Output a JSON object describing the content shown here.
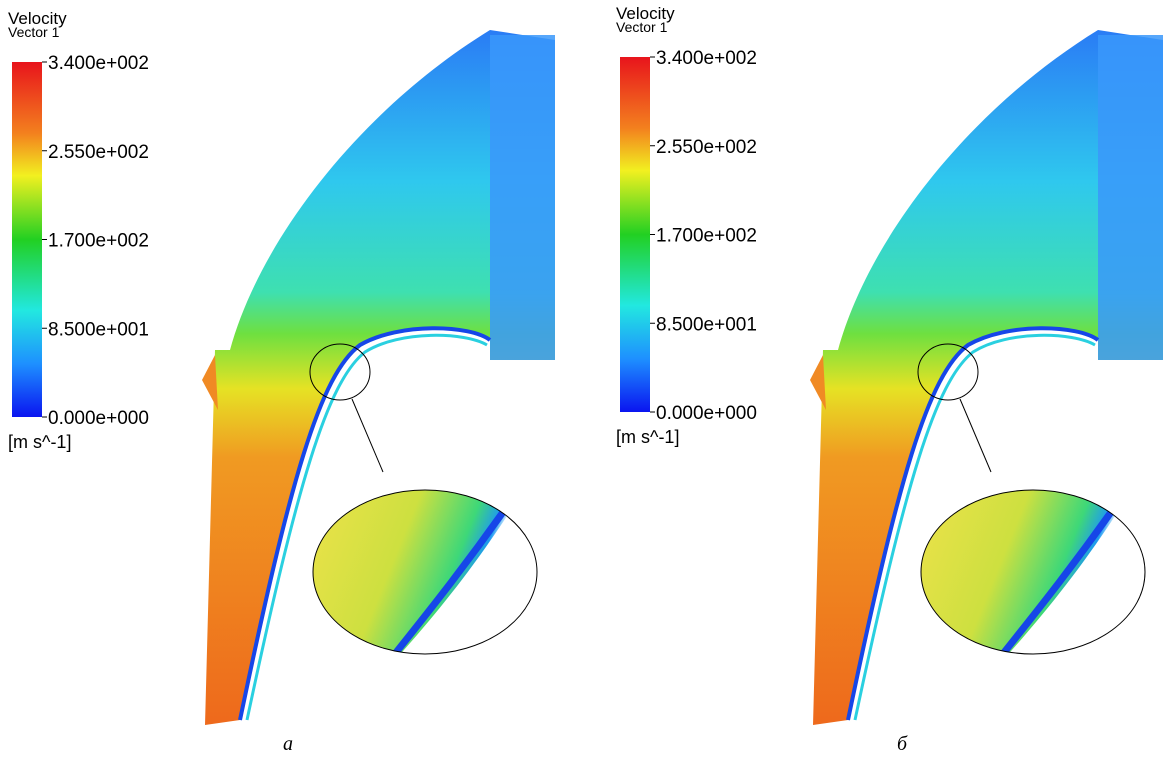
{
  "panels": [
    {
      "title": "Velocity",
      "subtitle": "Vector 1",
      "legend": {
        "ticks": [
          "3.400e+002",
          "2.550e+002",
          "1.700e+002",
          "8.500e+001",
          "0.000e+000"
        ],
        "unit": "[m s^-1]"
      },
      "label": "а"
    },
    {
      "title": "Velocity",
      "subtitle": "Vector 1",
      "legend": {
        "ticks": [
          "3.400e+002",
          "2.550e+002",
          "1.700e+002",
          "8.500e+001",
          "0.000e+000"
        ],
        "unit": "[m s^-1]"
      },
      "label": "б"
    }
  ]
}
